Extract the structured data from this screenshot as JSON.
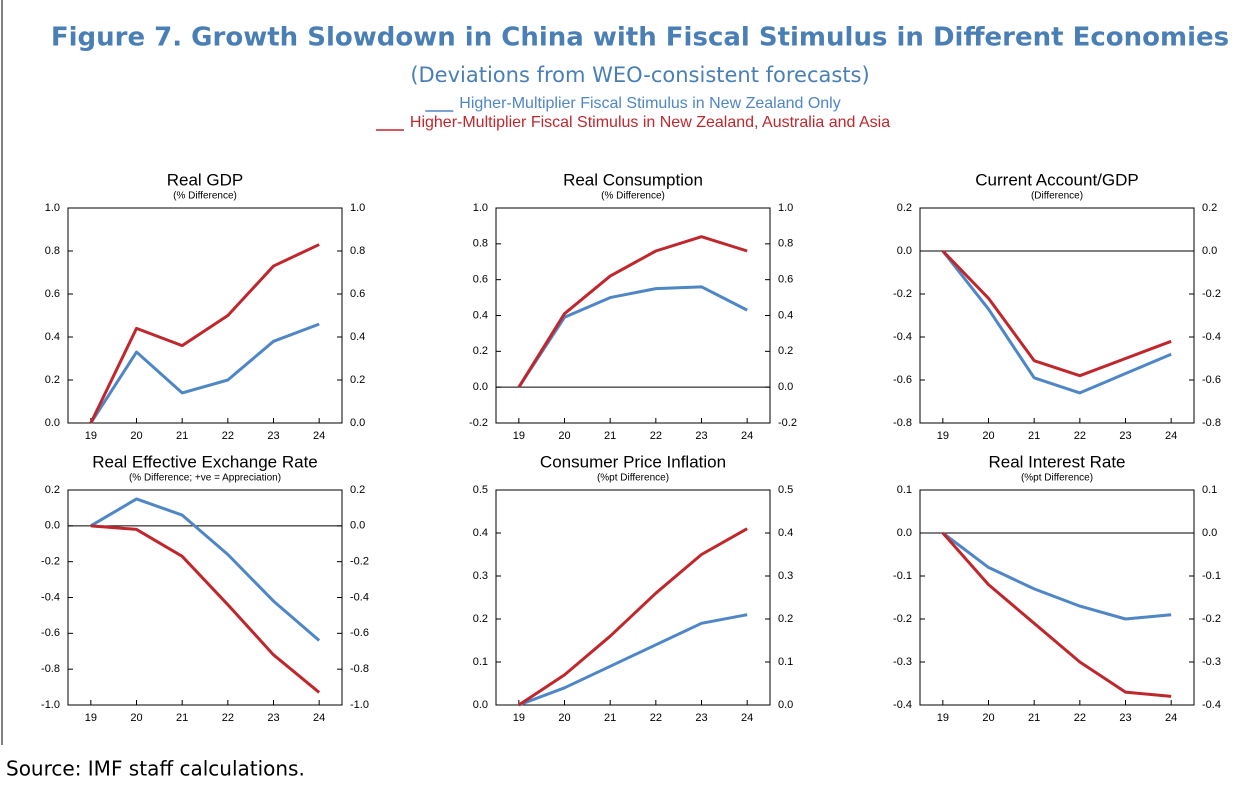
{
  "title": "Figure 7.  Growth Slowdown in China with Fiscal Stimulus in Different Economies",
  "subtitle": "(Deviations from WEO-consistent forecasts)",
  "series": [
    {
      "name": "Higher-Multiplier Fiscal Stimulus in New Zealand Only",
      "color": "#4f86c6"
    },
    {
      "name": "Higher-Multiplier Fiscal Stimulus in New Zealand, Australia and Asia",
      "color": "#c0272d"
    }
  ],
  "source": "Source: IMF staff calculations.",
  "chart_data": [
    {
      "type": "line",
      "title": "Real GDP",
      "subtitle": "(% Difference)",
      "categories": [
        "19",
        "20",
        "21",
        "22",
        "23",
        "24"
      ],
      "series": [
        {
          "values": [
            0,
            0.33,
            0.14,
            0.2,
            0.38,
            0.46
          ]
        },
        {
          "values": [
            0,
            0.44,
            0.36,
            0.5,
            0.73,
            0.83
          ]
        }
      ],
      "ylim": [
        0,
        1
      ],
      "zero_line": false,
      "yticks": [
        {
          "value": 0,
          "label": "0.0"
        },
        {
          "value": 0.2,
          "label": "0.2"
        },
        {
          "value": 0.4,
          "label": "0.4"
        },
        {
          "value": 0.6,
          "label": "0.6"
        },
        {
          "value": 0.8,
          "label": "0.8"
        },
        {
          "value": 1,
          "label": "1.0"
        }
      ]
    },
    {
      "type": "line",
      "title": "Real Consumption",
      "subtitle": "(% Difference)",
      "categories": [
        "19",
        "20",
        "21",
        "22",
        "23",
        "24"
      ],
      "series": [
        {
          "values": [
            0,
            0.39,
            0.5,
            0.55,
            0.56,
            0.43
          ]
        },
        {
          "values": [
            0,
            0.41,
            0.62,
            0.76,
            0.84,
            0.76
          ]
        }
      ],
      "ylim": [
        -0.2,
        1
      ],
      "zero_line": true,
      "yticks": [
        {
          "value": -0.2,
          "label": "-0.2"
        },
        {
          "value": 0,
          "label": "0.0"
        },
        {
          "value": 0.2,
          "label": "0.2"
        },
        {
          "value": 0.4,
          "label": "0.4"
        },
        {
          "value": 0.6,
          "label": "0.6"
        },
        {
          "value": 0.8,
          "label": "0.8"
        },
        {
          "value": 1,
          "label": "1.0"
        }
      ]
    },
    {
      "type": "line",
      "title": "Current Account/GDP",
      "subtitle": "(Difference)",
      "categories": [
        "19",
        "20",
        "21",
        "22",
        "23",
        "24"
      ],
      "series": [
        {
          "values": [
            0,
            -0.27,
            -0.59,
            -0.66,
            -0.57,
            -0.48
          ]
        },
        {
          "values": [
            0,
            -0.22,
            -0.51,
            -0.58,
            -0.5,
            -0.42
          ]
        }
      ],
      "ylim": [
        -0.8,
        0.2
      ],
      "zero_line": true,
      "yticks": [
        {
          "value": -0.8,
          "label": "-0.8"
        },
        {
          "value": -0.6,
          "label": "-0.6"
        },
        {
          "value": -0.4,
          "label": "-0.4"
        },
        {
          "value": -0.2,
          "label": "-0.2"
        },
        {
          "value": 0,
          "label": "0.0"
        },
        {
          "value": 0.2,
          "label": "0.2"
        }
      ]
    },
    {
      "type": "line",
      "title": "Real Effective Exchange Rate",
      "subtitle": "(% Difference; +ve = Appreciation)",
      "categories": [
        "19",
        "20",
        "21",
        "22",
        "23",
        "24"
      ],
      "series": [
        {
          "values": [
            0,
            0.15,
            0.06,
            -0.16,
            -0.42,
            -0.64
          ]
        },
        {
          "values": [
            0,
            -0.02,
            -0.17,
            -0.44,
            -0.72,
            -0.93
          ]
        }
      ],
      "ylim": [
        -1,
        0.2
      ],
      "zero_line": true,
      "yticks": [
        {
          "value": -1,
          "label": "-1.0"
        },
        {
          "value": -0.8,
          "label": "-0.8"
        },
        {
          "value": -0.6,
          "label": "-0.6"
        },
        {
          "value": -0.4,
          "label": "-0.4"
        },
        {
          "value": -0.2,
          "label": "-0.2"
        },
        {
          "value": 0,
          "label": "0.0"
        },
        {
          "value": 0.2,
          "label": "0.2"
        }
      ]
    },
    {
      "type": "line",
      "title": "Consumer Price Inflation",
      "subtitle": "(%pt Difference)",
      "categories": [
        "19",
        "20",
        "21",
        "22",
        "23",
        "24"
      ],
      "series": [
        {
          "values": [
            0,
            0.04,
            0.09,
            0.14,
            0.19,
            0.21
          ]
        },
        {
          "values": [
            0,
            0.07,
            0.16,
            0.26,
            0.35,
            0.41
          ]
        }
      ],
      "ylim": [
        0,
        0.5
      ],
      "zero_line": false,
      "yticks": [
        {
          "value": 0,
          "label": "0.0"
        },
        {
          "value": 0.1,
          "label": "0.1"
        },
        {
          "value": 0.2,
          "label": "0.2"
        },
        {
          "value": 0.3,
          "label": "0.3"
        },
        {
          "value": 0.4,
          "label": "0.4"
        },
        {
          "value": 0.5,
          "label": "0.5"
        }
      ]
    },
    {
      "type": "line",
      "title": "Real Interest Rate",
      "subtitle": "(%pt Difference)",
      "categories": [
        "19",
        "20",
        "21",
        "22",
        "23",
        "24"
      ],
      "series": [
        {
          "values": [
            0,
            -0.08,
            -0.13,
            -0.17,
            -0.2,
            -0.19
          ]
        },
        {
          "values": [
            0,
            -0.12,
            -0.21,
            -0.3,
            -0.37,
            -0.38
          ]
        }
      ],
      "ylim": [
        -0.4,
        0.1
      ],
      "zero_line": true,
      "yticks": [
        {
          "value": -0.4,
          "label": "-0.4"
        },
        {
          "value": -0.3,
          "label": "-0.3"
        },
        {
          "value": -0.2,
          "label": "-0.2"
        },
        {
          "value": -0.1,
          "label": "-0.1"
        },
        {
          "value": 0,
          "label": "0.0"
        },
        {
          "value": 0.1,
          "label": "0.1"
        }
      ]
    }
  ]
}
